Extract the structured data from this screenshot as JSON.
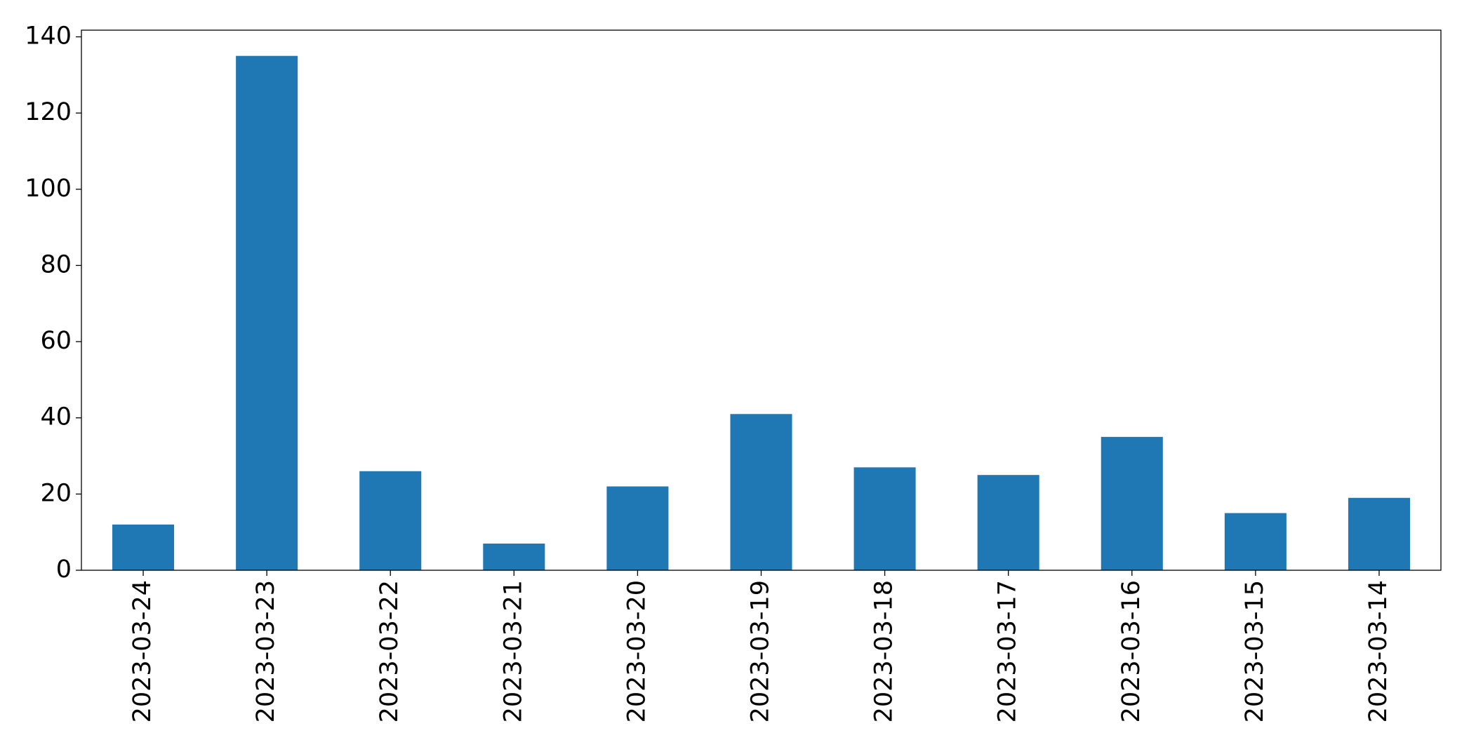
{
  "chart_data": {
    "type": "bar",
    "categories": [
      "2023-03-24",
      "2023-03-23",
      "2023-03-22",
      "2023-03-21",
      "2023-03-20",
      "2023-03-19",
      "2023-03-18",
      "2023-03-17",
      "2023-03-16",
      "2023-03-15",
      "2023-03-14"
    ],
    "values": [
      12,
      135,
      26,
      7,
      22,
      41,
      27,
      25,
      35,
      15,
      19
    ],
    "color": "#1f77b4",
    "ylim": [
      0,
      141.75
    ],
    "yticks": [
      0,
      20,
      40,
      60,
      80,
      100,
      120,
      140
    ],
    "grid": false
  }
}
